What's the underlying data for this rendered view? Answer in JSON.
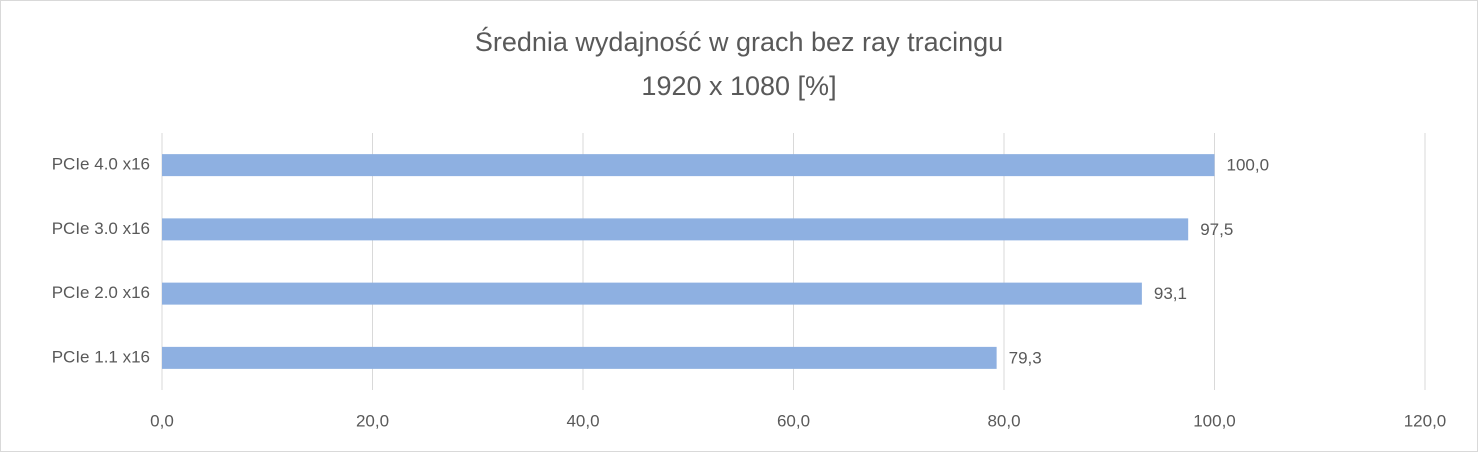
{
  "chart_data": {
    "type": "bar",
    "orientation": "horizontal",
    "title": "Średnia wydajność w grach bez ray tracingu",
    "subtitle": "1920 x 1080 [%]",
    "categories": [
      "PCIe 4.0 x16",
      "PCIe 3.0 x16",
      "PCIe 2.0 x16",
      "PCIe 1.1 x16"
    ],
    "values": [
      100.0,
      97.5,
      93.1,
      79.3
    ],
    "value_labels": [
      "100,0",
      "97,5",
      "93,1",
      "79,3"
    ],
    "color": "#8eb0e1",
    "xlim": [
      0,
      120
    ],
    "xticks": [
      {
        "value": 0,
        "label": "0,0"
      },
      {
        "value": 20,
        "label": "20,0"
      },
      {
        "value": 40,
        "label": "40,0"
      },
      {
        "value": 60,
        "label": "60,0"
      },
      {
        "value": 80,
        "label": "80,0"
      },
      {
        "value": 100,
        "label": "100,0"
      },
      {
        "value": 120,
        "label": "120,0"
      }
    ],
    "grid": true
  }
}
